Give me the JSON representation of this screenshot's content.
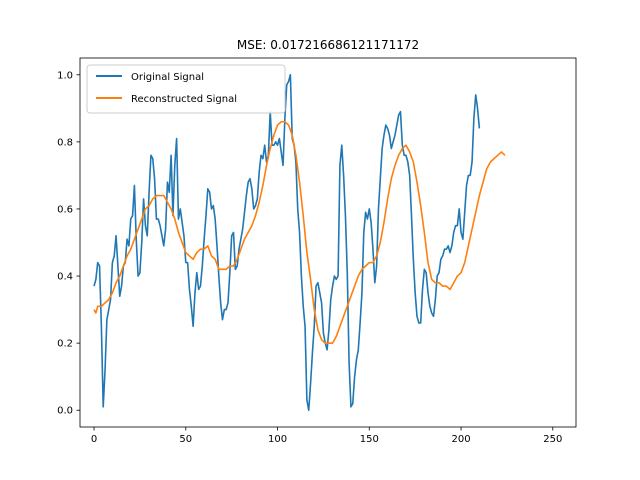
{
  "chart_data": {
    "type": "line",
    "title": "MSE: 0.017216686121171172",
    "xlabel": "",
    "ylabel": "",
    "xlim": [
      -7.65,
      262.65
    ],
    "ylim": [
      -0.05,
      1.05
    ],
    "xticks": [
      0,
      50,
      100,
      150,
      200,
      250
    ],
    "yticks": [
      0.0,
      0.2,
      0.4,
      0.6,
      0.8,
      1.0
    ],
    "xtick_labels": [
      "0",
      "50",
      "100",
      "150",
      "200",
      "250"
    ],
    "ytick_labels": [
      "0.0",
      "0.2",
      "0.4",
      "0.6",
      "0.8",
      "1.0"
    ],
    "grid": false,
    "legend_position": "top-left",
    "series": [
      {
        "name": "Original Signal",
        "color": "#1f77b4",
        "points": [
          [
            0,
            0.37
          ],
          [
            1,
            0.39
          ],
          [
            2,
            0.44
          ],
          [
            3,
            0.43
          ],
          [
            4,
            0.25
          ],
          [
            5,
            0.01
          ],
          [
            6,
            0.12
          ],
          [
            7,
            0.27
          ],
          [
            8,
            0.3
          ],
          [
            9,
            0.33
          ],
          [
            10,
            0.44
          ],
          [
            11,
            0.46
          ],
          [
            12,
            0.52
          ],
          [
            13,
            0.43
          ],
          [
            14,
            0.34
          ],
          [
            15,
            0.37
          ],
          [
            16,
            0.43
          ],
          [
            17,
            0.44
          ],
          [
            18,
            0.51
          ],
          [
            19,
            0.49
          ],
          [
            20,
            0.57
          ],
          [
            21,
            0.58
          ],
          [
            22,
            0.67
          ],
          [
            23,
            0.51
          ],
          [
            24,
            0.4
          ],
          [
            25,
            0.41
          ],
          [
            26,
            0.5
          ],
          [
            27,
            0.63
          ],
          [
            28,
            0.55
          ],
          [
            29,
            0.52
          ],
          [
            30,
            0.65
          ],
          [
            31,
            0.76
          ],
          [
            32,
            0.75
          ],
          [
            33,
            0.69
          ],
          [
            34,
            0.57
          ],
          [
            35,
            0.57
          ],
          [
            36,
            0.55
          ],
          [
            37,
            0.52
          ],
          [
            38,
            0.49
          ],
          [
            39,
            0.54
          ],
          [
            40,
            0.68
          ],
          [
            41,
            0.65
          ],
          [
            42,
            0.76
          ],
          [
            43,
            0.58
          ],
          [
            44,
            0.73
          ],
          [
            45,
            0.81
          ],
          [
            46,
            0.57
          ],
          [
            47,
            0.6
          ],
          [
            48,
            0.56
          ],
          [
            49,
            0.52
          ],
          [
            50,
            0.44
          ],
          [
            51,
            0.44
          ],
          [
            52,
            0.36
          ],
          [
            53,
            0.31
          ],
          [
            54,
            0.25
          ],
          [
            55,
            0.35
          ],
          [
            56,
            0.41
          ],
          [
            57,
            0.36
          ],
          [
            58,
            0.37
          ],
          [
            59,
            0.43
          ],
          [
            60,
            0.51
          ],
          [
            61,
            0.58
          ],
          [
            62,
            0.66
          ],
          [
            63,
            0.65
          ],
          [
            64,
            0.6
          ],
          [
            65,
            0.61
          ],
          [
            66,
            0.57
          ],
          [
            67,
            0.49
          ],
          [
            68,
            0.4
          ],
          [
            69,
            0.32
          ],
          [
            70,
            0.27
          ],
          [
            71,
            0.3
          ],
          [
            72,
            0.3
          ],
          [
            73,
            0.32
          ],
          [
            74,
            0.41
          ],
          [
            75,
            0.52
          ],
          [
            76,
            0.53
          ],
          [
            77,
            0.42
          ],
          [
            78,
            0.43
          ],
          [
            79,
            0.48
          ],
          [
            80,
            0.51
          ],
          [
            81,
            0.54
          ],
          [
            82,
            0.59
          ],
          [
            83,
            0.64
          ],
          [
            84,
            0.68
          ],
          [
            85,
            0.69
          ],
          [
            86,
            0.66
          ],
          [
            87,
            0.6
          ],
          [
            88,
            0.61
          ],
          [
            89,
            0.63
          ],
          [
            90,
            0.71
          ],
          [
            91,
            0.76
          ],
          [
            92,
            0.75
          ],
          [
            93,
            0.79
          ],
          [
            94,
            0.74
          ],
          [
            95,
            0.76
          ],
          [
            96,
            0.89
          ],
          [
            97,
            0.79
          ],
          [
            98,
            0.79
          ],
          [
            99,
            0.8
          ],
          [
            100,
            0.79
          ],
          [
            101,
            0.81
          ],
          [
            102,
            0.77
          ],
          [
            103,
            0.73
          ],
          [
            104,
            0.87
          ],
          [
            105,
            0.97
          ],
          [
            106,
            0.98
          ],
          [
            107,
            1.0
          ],
          [
            108,
            0.81
          ],
          [
            109,
            0.79
          ],
          [
            110,
            0.74
          ],
          [
            111,
            0.6
          ],
          [
            112,
            0.53
          ],
          [
            113,
            0.4
          ],
          [
            114,
            0.31
          ],
          [
            115,
            0.25
          ],
          [
            116,
            0.03
          ],
          [
            117,
            0.0
          ],
          [
            118,
            0.08
          ],
          [
            119,
            0.17
          ],
          [
            120,
            0.25
          ],
          [
            121,
            0.37
          ],
          [
            122,
            0.38
          ],
          [
            123,
            0.35
          ],
          [
            124,
            0.32
          ],
          [
            125,
            0.23
          ],
          [
            126,
            0.2
          ],
          [
            127,
            0.18
          ],
          [
            128,
            0.24
          ],
          [
            129,
            0.33
          ],
          [
            130,
            0.37
          ],
          [
            131,
            0.4
          ],
          [
            132,
            0.39
          ],
          [
            133,
            0.4
          ],
          [
            134,
            0.73
          ],
          [
            135,
            0.79
          ],
          [
            136,
            0.7
          ],
          [
            137,
            0.58
          ],
          [
            138,
            0.41
          ],
          [
            139,
            0.14
          ],
          [
            140,
            0.01
          ],
          [
            141,
            0.02
          ],
          [
            142,
            0.1
          ],
          [
            143,
            0.15
          ],
          [
            144,
            0.18
          ],
          [
            145,
            0.26
          ],
          [
            146,
            0.35
          ],
          [
            147,
            0.53
          ],
          [
            148,
            0.59
          ],
          [
            149,
            0.57
          ],
          [
            150,
            0.6
          ],
          [
            151,
            0.56
          ],
          [
            152,
            0.48
          ],
          [
            153,
            0.38
          ],
          [
            154,
            0.43
          ],
          [
            155,
            0.6
          ],
          [
            156,
            0.69
          ],
          [
            157,
            0.78
          ],
          [
            158,
            0.82
          ],
          [
            159,
            0.85
          ],
          [
            160,
            0.84
          ],
          [
            161,
            0.82
          ],
          [
            162,
            0.78
          ],
          [
            163,
            0.8
          ],
          [
            164,
            0.82
          ],
          [
            165,
            0.85
          ],
          [
            166,
            0.88
          ],
          [
            167,
            0.89
          ],
          [
            168,
            0.79
          ],
          [
            169,
            0.76
          ],
          [
            170,
            0.76
          ],
          [
            171,
            0.74
          ],
          [
            172,
            0.7
          ],
          [
            173,
            0.58
          ],
          [
            174,
            0.45
          ],
          [
            175,
            0.35
          ],
          [
            176,
            0.28
          ],
          [
            177,
            0.26
          ],
          [
            178,
            0.26
          ],
          [
            179,
            0.36
          ],
          [
            180,
            0.42
          ],
          [
            181,
            0.41
          ],
          [
            182,
            0.35
          ],
          [
            183,
            0.31
          ],
          [
            184,
            0.29
          ],
          [
            185,
            0.28
          ],
          [
            186,
            0.33
          ],
          [
            187,
            0.4
          ],
          [
            188,
            0.41
          ],
          [
            189,
            0.45
          ],
          [
            190,
            0.46
          ],
          [
            191,
            0.48
          ],
          [
            192,
            0.48
          ],
          [
            193,
            0.49
          ],
          [
            194,
            0.47
          ],
          [
            195,
            0.49
          ],
          [
            196,
            0.53
          ],
          [
            197,
            0.55
          ],
          [
            198,
            0.55
          ],
          [
            199,
            0.6
          ],
          [
            200,
            0.53
          ],
          [
            201,
            0.51
          ],
          [
            202,
            0.59
          ],
          [
            203,
            0.67
          ],
          [
            204,
            0.7
          ],
          [
            205,
            0.7
          ],
          [
            206,
            0.74
          ],
          [
            207,
            0.87
          ],
          [
            208,
            0.94
          ],
          [
            209,
            0.9
          ],
          [
            210,
            0.84
          ]
        ]
      },
      {
        "name": "Reconstructed Signal",
        "color": "#ff7f0e",
        "points": [
          [
            0,
            0.3
          ],
          [
            1,
            0.29
          ],
          [
            2,
            0.31
          ],
          [
            4,
            0.31
          ],
          [
            6,
            0.32
          ],
          [
            8,
            0.33
          ],
          [
            10,
            0.35
          ],
          [
            12,
            0.38
          ],
          [
            14,
            0.4
          ],
          [
            16,
            0.43
          ],
          [
            18,
            0.46
          ],
          [
            20,
            0.48
          ],
          [
            22,
            0.51
          ],
          [
            24,
            0.54
          ],
          [
            26,
            0.57
          ],
          [
            28,
            0.6
          ],
          [
            30,
            0.61
          ],
          [
            32,
            0.63
          ],
          [
            34,
            0.64
          ],
          [
            36,
            0.64
          ],
          [
            38,
            0.64
          ],
          [
            40,
            0.62
          ],
          [
            42,
            0.6
          ],
          [
            44,
            0.57
          ],
          [
            46,
            0.53
          ],
          [
            48,
            0.5
          ],
          [
            50,
            0.47
          ],
          [
            52,
            0.46
          ],
          [
            54,
            0.45
          ],
          [
            56,
            0.47
          ],
          [
            58,
            0.48
          ],
          [
            60,
            0.48
          ],
          [
            62,
            0.49
          ],
          [
            64,
            0.46
          ],
          [
            66,
            0.45
          ],
          [
            68,
            0.42
          ],
          [
            70,
            0.42
          ],
          [
            72,
            0.42
          ],
          [
            74,
            0.43
          ],
          [
            76,
            0.43
          ],
          [
            78,
            0.45
          ],
          [
            80,
            0.48
          ],
          [
            82,
            0.51
          ],
          [
            84,
            0.53
          ],
          [
            86,
            0.55
          ],
          [
            88,
            0.58
          ],
          [
            90,
            0.62
          ],
          [
            92,
            0.67
          ],
          [
            94,
            0.73
          ],
          [
            96,
            0.78
          ],
          [
            98,
            0.82
          ],
          [
            100,
            0.85
          ],
          [
            102,
            0.86
          ],
          [
            104,
            0.86
          ],
          [
            106,
            0.85
          ],
          [
            108,
            0.82
          ],
          [
            110,
            0.76
          ],
          [
            112,
            0.68
          ],
          [
            114,
            0.58
          ],
          [
            116,
            0.47
          ],
          [
            118,
            0.39
          ],
          [
            120,
            0.3
          ],
          [
            122,
            0.24
          ],
          [
            124,
            0.21
          ],
          [
            126,
            0.2
          ],
          [
            128,
            0.2
          ],
          [
            130,
            0.2
          ],
          [
            132,
            0.22
          ],
          [
            134,
            0.25
          ],
          [
            136,
            0.28
          ],
          [
            138,
            0.31
          ],
          [
            140,
            0.34
          ],
          [
            142,
            0.37
          ],
          [
            144,
            0.4
          ],
          [
            146,
            0.42
          ],
          [
            148,
            0.43
          ],
          [
            150,
            0.44
          ],
          [
            152,
            0.44
          ],
          [
            154,
            0.46
          ],
          [
            156,
            0.5
          ],
          [
            158,
            0.56
          ],
          [
            160,
            0.63
          ],
          [
            162,
            0.69
          ],
          [
            164,
            0.73
          ],
          [
            166,
            0.76
          ],
          [
            168,
            0.78
          ],
          [
            170,
            0.79
          ],
          [
            172,
            0.77
          ],
          [
            174,
            0.74
          ],
          [
            176,
            0.68
          ],
          [
            178,
            0.61
          ],
          [
            180,
            0.53
          ],
          [
            182,
            0.44
          ],
          [
            184,
            0.39
          ],
          [
            186,
            0.38
          ],
          [
            188,
            0.38
          ],
          [
            190,
            0.37
          ],
          [
            192,
            0.37
          ],
          [
            194,
            0.36
          ],
          [
            196,
            0.38
          ],
          [
            198,
            0.4
          ],
          [
            200,
            0.41
          ],
          [
            202,
            0.44
          ],
          [
            204,
            0.49
          ],
          [
            206,
            0.54
          ],
          [
            208,
            0.59
          ],
          [
            210,
            0.64
          ],
          [
            212,
            0.68
          ],
          [
            214,
            0.72
          ],
          [
            216,
            0.74
          ],
          [
            218,
            0.75
          ],
          [
            220,
            0.76
          ],
          [
            222,
            0.77
          ],
          [
            224,
            0.76
          ]
        ]
      }
    ]
  }
}
